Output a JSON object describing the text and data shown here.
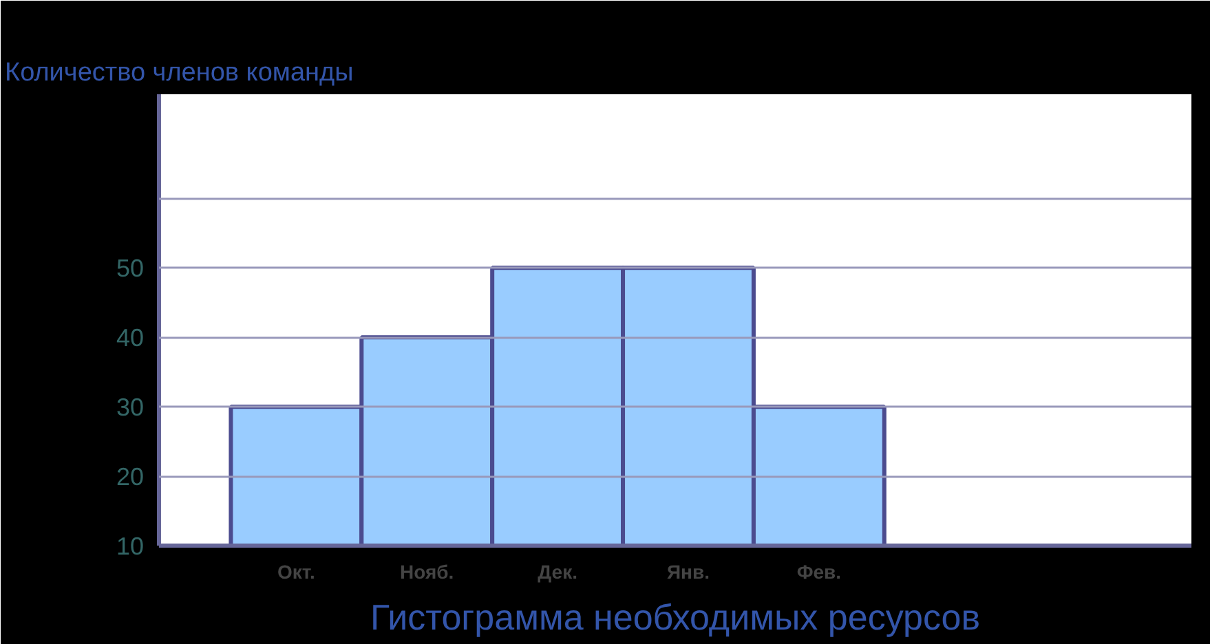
{
  "chart_data": {
    "type": "bar",
    "title": "Гистограмма необходимых ресурсов",
    "ylabel": "Количество членов команды",
    "categories": [
      "Окт.",
      "Нояб.",
      "Дек.",
      "Янв.",
      "Фев."
    ],
    "values": [
      30,
      40,
      50,
      50,
      30
    ],
    "color": "#99ccff",
    "ylim": [
      10,
      75
    ],
    "yticks": [
      10,
      20,
      30,
      40,
      50,
      {
        "value": 60,
        "label": null
      }
    ],
    "grid": "y"
  }
}
